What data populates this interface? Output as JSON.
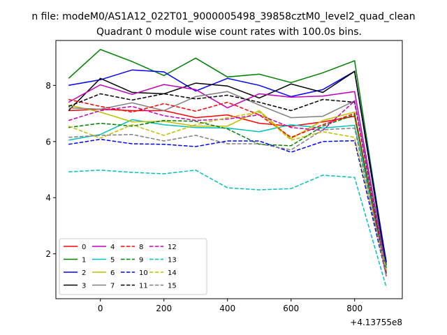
{
  "chart_data": {
    "type": "line",
    "suptitle": "n file: modeM0/AS1A12_022T01_9000005498_39858cztM0_level2_quad_clean",
    "title": "Quadrant 0 module wise count rates with 100.0s bins.",
    "xlabel": "",
    "ylabel": "",
    "x_offset_label": "+4.13755e8",
    "x": [
      -100,
      0,
      100,
      200,
      300,
      400,
      500,
      600,
      700,
      800,
      900
    ],
    "xlim": [
      -140,
      950
    ],
    "ylim": [
      0.4,
      9.6
    ],
    "xticks": [
      "0",
      "200",
      "400",
      "600",
      "800"
    ],
    "yticks": [
      "2",
      "4",
      "6",
      "8"
    ],
    "grid": false,
    "legend": {
      "loc": "lower-left",
      "ncol": 5
    },
    "series": [
      {
        "name": "0",
        "color": "#ff0000",
        "dash": "solid",
        "values": [
          7.1,
          7.15,
          7.1,
          7.1,
          6.85,
          6.95,
          6.65,
          6.55,
          6.7,
          6.9,
          1.3
        ]
      },
      {
        "name": "1",
        "color": "#008000",
        "dash": "solid",
        "values": [
          8.25,
          9.28,
          8.85,
          8.35,
          8.97,
          8.3,
          8.4,
          8.1,
          8.45,
          8.88,
          1.6
        ]
      },
      {
        "name": "2",
        "color": "#0000ff",
        "dash": "solid",
        "values": [
          8.0,
          8.2,
          8.55,
          8.48,
          7.8,
          8.25,
          8.0,
          7.6,
          7.85,
          8.5,
          1.7
        ]
      },
      {
        "name": "3",
        "color": "#000000",
        "dash": "solid",
        "values": [
          7.1,
          8.25,
          7.75,
          7.7,
          8.08,
          7.98,
          7.55,
          8.05,
          7.75,
          8.5,
          1.5
        ]
      },
      {
        "name": "4",
        "color": "#bf00bf",
        "dash": "solid",
        "values": [
          7.4,
          8.02,
          7.68,
          8.03,
          7.85,
          7.2,
          7.7,
          7.58,
          7.62,
          7.78,
          1.4
        ]
      },
      {
        "name": "5",
        "color": "#00bfbf",
        "dash": "solid",
        "values": [
          6.05,
          6.25,
          6.78,
          6.6,
          6.5,
          6.48,
          6.35,
          6.6,
          6.48,
          6.58,
          1.5
        ]
      },
      {
        "name": "6",
        "color": "#bfbf00",
        "dash": "solid",
        "values": [
          7.3,
          7.05,
          6.7,
          6.72,
          6.55,
          6.55,
          7.1,
          6.1,
          6.75,
          7.05,
          1.3
        ]
      },
      {
        "name": "7",
        "color": "#808080",
        "dash": "solid",
        "values": [
          7.2,
          7.15,
          7.38,
          7.1,
          7.6,
          7.78,
          7.3,
          6.85,
          6.9,
          7.45,
          1.4
        ]
      },
      {
        "name": "8",
        "color": "#ff0000",
        "dash": "dashed",
        "values": [
          7.5,
          7.25,
          7.05,
          7.35,
          7.08,
          7.4,
          6.95,
          6.15,
          6.6,
          7.0,
          1.2
        ]
      },
      {
        "name": "9",
        "color": "#008000",
        "dash": "dashed",
        "values": [
          6.5,
          6.65,
          6.55,
          6.75,
          6.72,
          6.45,
          5.9,
          5.85,
          6.55,
          6.95,
          1.3
        ]
      },
      {
        "name": "10",
        "color": "#0000ff",
        "dash": "dashed",
        "values": [
          5.9,
          6.08,
          5.92,
          5.9,
          5.82,
          6.02,
          6.02,
          5.62,
          6.0,
          6.03,
          1.2
        ]
      },
      {
        "name": "11",
        "color": "#000000",
        "dash": "dashed",
        "values": [
          7.25,
          7.7,
          7.48,
          7.7,
          7.52,
          7.65,
          7.4,
          7.1,
          7.5,
          7.4,
          1.3
        ]
      },
      {
        "name": "12",
        "color": "#bf00bf",
        "dash": "dashed",
        "values": [
          6.75,
          7.1,
          7.25,
          6.92,
          6.75,
          6.8,
          6.95,
          6.5,
          6.4,
          7.45,
          1.3
        ]
      },
      {
        "name": "13",
        "color": "#00bfbf",
        "dash": "dashed",
        "values": [
          4.92,
          4.98,
          4.9,
          4.85,
          4.98,
          4.35,
          4.28,
          4.32,
          4.8,
          4.72,
          0.8
        ]
      },
      {
        "name": "14",
        "color": "#bfbf00",
        "dash": "dashed",
        "values": [
          6.55,
          6.12,
          6.6,
          6.22,
          6.6,
          6.85,
          7.05,
          6.05,
          6.35,
          6.15,
          1.4
        ]
      },
      {
        "name": "15",
        "color": "#808080",
        "dash": "dashed",
        "values": [
          6.15,
          6.22,
          6.25,
          6.02,
          6.22,
          5.92,
          5.92,
          5.7,
          6.42,
          6.48,
          1.2
        ]
      }
    ]
  }
}
